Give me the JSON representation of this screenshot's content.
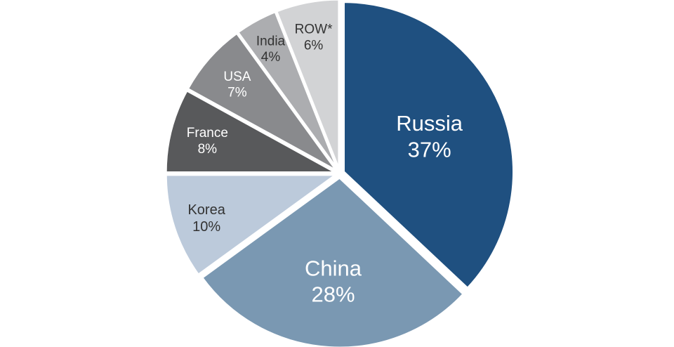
{
  "chart_data": {
    "type": "pie",
    "start": "12 o'clock",
    "direction": "clockwise",
    "exploded": "all slices slightly separated",
    "slices": [
      {
        "name": "Russia",
        "value_label": "37%",
        "value": 37,
        "color": "#1f5080",
        "text_color": "#ffffff"
      },
      {
        "name": "China",
        "value_label": "28%",
        "value": 28,
        "color": "#7a98b2",
        "text_color": "#ffffff"
      },
      {
        "name": "Korea",
        "value_label": "10%",
        "value": 10,
        "color": "#bccadb",
        "text_color": "#333333"
      },
      {
        "name": "France",
        "value_label": "8%",
        "value": 8,
        "color": "#58595b",
        "text_color": "#ffffff"
      },
      {
        "name": "USA",
        "value_label": "7%",
        "value": 7,
        "color": "#898a8d",
        "text_color": "#ffffff"
      },
      {
        "name": "India",
        "value_label": "4%",
        "value": 4,
        "color": "#acadb0",
        "text_color": "#333333"
      },
      {
        "name": "ROW*",
        "value_label": "6%",
        "value": 6,
        "color": "#d2d3d5",
        "text_color": "#333333"
      }
    ]
  }
}
